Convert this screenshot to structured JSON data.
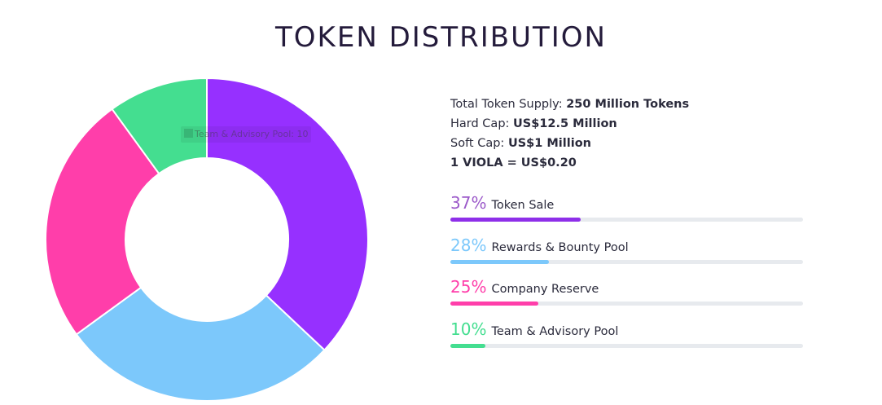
{
  "title": "TOKEN DISTRIBUTION",
  "tooltip": {
    "text": "Team & Advisory Pool: 10"
  },
  "supply_info": {
    "total_supply_label": "Total Token Supply:",
    "total_supply_value": "250 Million Tokens",
    "hard_cap_label": "Hard Cap:",
    "hard_cap_value": "US$12.5 Million",
    "soft_cap_label": "Soft Cap:",
    "soft_cap_value": "US$1 Million",
    "price": "1 VIOLA = US$0.20"
  },
  "stats": [
    {
      "percent_text": "37%",
      "label": "Token Sale",
      "value": 37,
      "color": "#8e2fe9",
      "text_color": "#9b59c9"
    },
    {
      "percent_text": "28%",
      "label": "Rewards & Bounty Pool",
      "value": 28,
      "color": "#7cc8fb",
      "text_color": "#7cc8fb"
    },
    {
      "percent_text": "25%",
      "label": "Company Reserve",
      "value": 25,
      "color": "#ff3eaa",
      "text_color": "#ff3eaa"
    },
    {
      "percent_text": "10%",
      "label": "Team & Advisory Pool",
      "value": 10,
      "color": "#44de90",
      "text_color": "#44de90"
    }
  ],
  "chart_data": {
    "type": "pie",
    "style": "donut",
    "categories": [
      "Token Sale",
      "Rewards & Bounty Pool",
      "Company Reserve",
      "Team & Advisory Pool"
    ],
    "values": [
      37,
      28,
      25,
      10
    ],
    "colors": [
      "#9630ff",
      "#7cc8fb",
      "#ff3eaa",
      "#44de90"
    ],
    "start_angle_deg": 0,
    "direction": "clockwise"
  }
}
